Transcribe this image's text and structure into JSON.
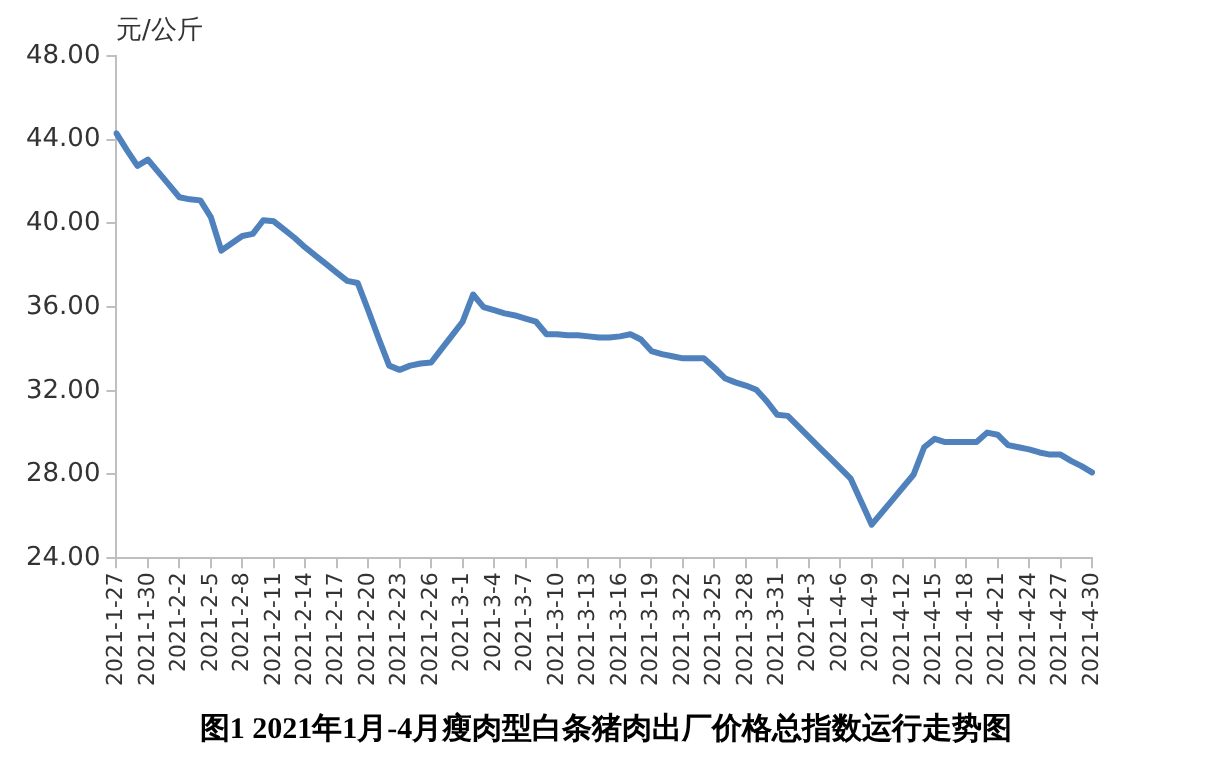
{
  "chart_data": {
    "type": "line",
    "title": "图1 2021年1月-4月瘦肉型白条猪肉出厂价格总指数运行走势图",
    "ylabel": "元/公斤",
    "categories": [
      "2021-1-27",
      null,
      null,
      "2021-1-30",
      null,
      null,
      "2021-2-2",
      null,
      null,
      "2021-2-5",
      null,
      null,
      "2021-2-8",
      null,
      null,
      "2021-2-11",
      null,
      null,
      "2021-2-14",
      null,
      null,
      "2021-2-17",
      null,
      null,
      "2021-2-20",
      null,
      null,
      "2021-2-23",
      null,
      null,
      "2021-2-26",
      null,
      null,
      "2021-3-1",
      null,
      null,
      "2021-3-4",
      null,
      null,
      "2021-3-7",
      null,
      null,
      "2021-3-10",
      null,
      null,
      "2021-3-13",
      null,
      null,
      "2021-3-16",
      null,
      null,
      "2021-3-19",
      null,
      null,
      "2021-3-22",
      null,
      null,
      "2021-3-25",
      null,
      null,
      "2021-3-28",
      null,
      null,
      "2021-3-31",
      null,
      null,
      "2021-4-3",
      null,
      null,
      "2021-4-6",
      null,
      null,
      "2021-4-9",
      null,
      null,
      "2021-4-12",
      null,
      null,
      "2021-4-15",
      null,
      null,
      "2021-4-18",
      null,
      null,
      "2021-4-21",
      null,
      null,
      "2021-4-24",
      null,
      null,
      "2021-4-27",
      null,
      null,
      "2021-4-30"
    ],
    "series": [
      {
        "color": "#4f81bd",
        "values": [
          44.3,
          43.5,
          42.75,
          43.05,
          42.45,
          41.85,
          41.25,
          41.15,
          41.1,
          40.3,
          38.7,
          39.05,
          39.4,
          39.5,
          40.15,
          40.1,
          39.7,
          39.3,
          38.85,
          38.45,
          38.05,
          37.65,
          37.25,
          37.15,
          35.85,
          34.5,
          33.2,
          33.0,
          33.2,
          33.3,
          33.35,
          34.0,
          34.65,
          35.3,
          36.6,
          36.0,
          35.85,
          35.7,
          35.6,
          35.45,
          35.3,
          34.7,
          34.7,
          34.65,
          34.65,
          34.6,
          34.55,
          34.55,
          34.6,
          34.7,
          34.45,
          33.9,
          33.75,
          33.65,
          33.55,
          33.55,
          33.55,
          33.1,
          32.6,
          32.4,
          32.25,
          32.05,
          31.5,
          30.85,
          30.8,
          30.3,
          29.8,
          29.3,
          28.8,
          28.3,
          27.8,
          26.7,
          25.6,
          26.2,
          26.8,
          27.4,
          28.0,
          29.3,
          29.7,
          29.55,
          29.55,
          29.55,
          29.55,
          30.0,
          29.9,
          29.4,
          29.3,
          29.2,
          29.05,
          28.95,
          28.95,
          28.65,
          28.4,
          28.1
        ]
      }
    ],
    "ylim": [
      24,
      48
    ],
    "yticks": [
      {
        "value": 24,
        "label": "24.00"
      },
      {
        "value": 28,
        "label": "28.00"
      },
      {
        "value": 32,
        "label": "32.00"
      },
      {
        "value": 36,
        "label": "36.00"
      },
      {
        "value": 40,
        "label": "40.00"
      },
      {
        "value": 44,
        "label": "44.00"
      },
      {
        "value": 48,
        "label": "48.00"
      }
    ],
    "grid": false,
    "legend": false,
    "marker": "none",
    "line_style": "solid"
  }
}
